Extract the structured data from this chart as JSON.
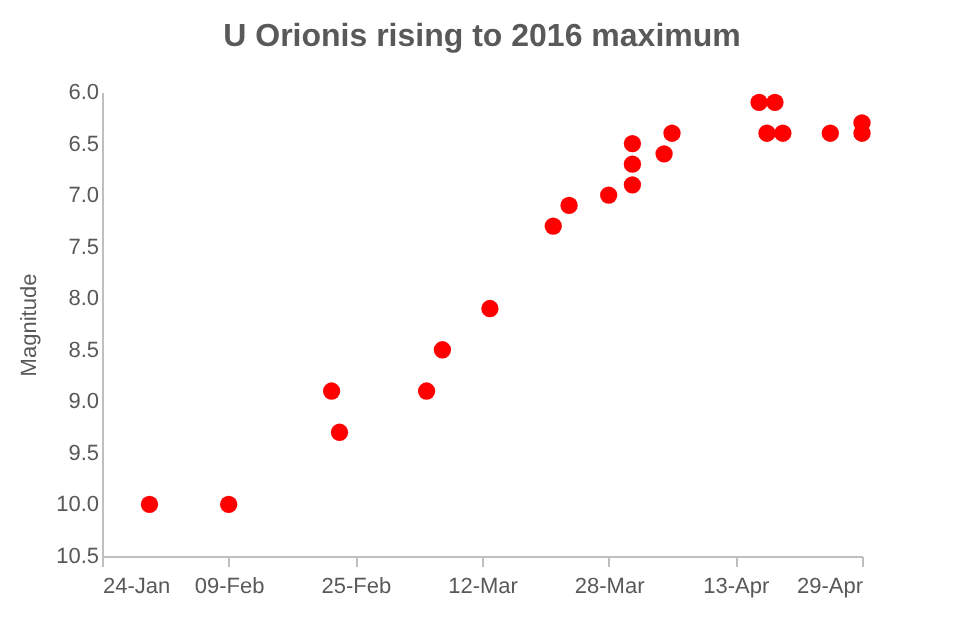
{
  "chart_data": {
    "type": "scatter",
    "title": "U Orionis rising to 2016 maximum",
    "ylabel": "Magnitude",
    "x": [
      "2016-01-30",
      "2016-02-09",
      "2016-02-22",
      "2016-02-23",
      "2016-03-05",
      "2016-03-07",
      "2016-03-13",
      "2016-03-21",
      "2016-03-23",
      "2016-03-28",
      "2016-03-31",
      "2016-03-31",
      "2016-03-31",
      "2016-04-04",
      "2016-04-05",
      "2016-04-16",
      "2016-04-17",
      "2016-04-18",
      "2016-04-19",
      "2016-04-25",
      "2016-04-29",
      "2016-04-29"
    ],
    "series": [
      {
        "color": "#ff0000",
        "values": [
          10.0,
          10.0,
          8.9,
          9.3,
          8.9,
          8.5,
          8.1,
          7.3,
          7.1,
          7.0,
          6.9,
          6.7,
          6.5,
          6.6,
          6.4,
          6.1,
          6.4,
          6.1,
          6.4,
          6.4,
          6.3,
          6.4
        ]
      }
    ],
    "xlim": [
      "2016-01-24",
      "2016-04-29"
    ],
    "xticks": [
      {
        "value": "2016-01-24",
        "label": "24-Jan"
      },
      {
        "value": "2016-02-09",
        "label": "09-Feb"
      },
      {
        "value": "2016-02-25",
        "label": "25-Feb"
      },
      {
        "value": "2016-03-12",
        "label": "12-Mar"
      },
      {
        "value": "2016-03-28",
        "label": "28-Mar"
      },
      {
        "value": "2016-04-13",
        "label": "13-Apr"
      },
      {
        "value": "2016-04-29",
        "label": "29-Apr"
      }
    ],
    "ylim": [
      10.5,
      6.0
    ],
    "yticks": [
      {
        "value": 6.0,
        "label": "6.0"
      },
      {
        "value": 6.5,
        "label": "6.5"
      },
      {
        "value": 7.0,
        "label": "7.0"
      },
      {
        "value": 7.5,
        "label": "7.5"
      },
      {
        "value": 8.0,
        "label": "8.0"
      },
      {
        "value": 8.5,
        "label": "8.5"
      },
      {
        "value": 9.0,
        "label": "9.0"
      },
      {
        "value": 9.5,
        "label": "9.5"
      },
      {
        "value": 10.0,
        "label": "10.0"
      },
      {
        "value": 10.5,
        "label": "10.5"
      }
    ],
    "grid": false,
    "marker": "circle"
  }
}
